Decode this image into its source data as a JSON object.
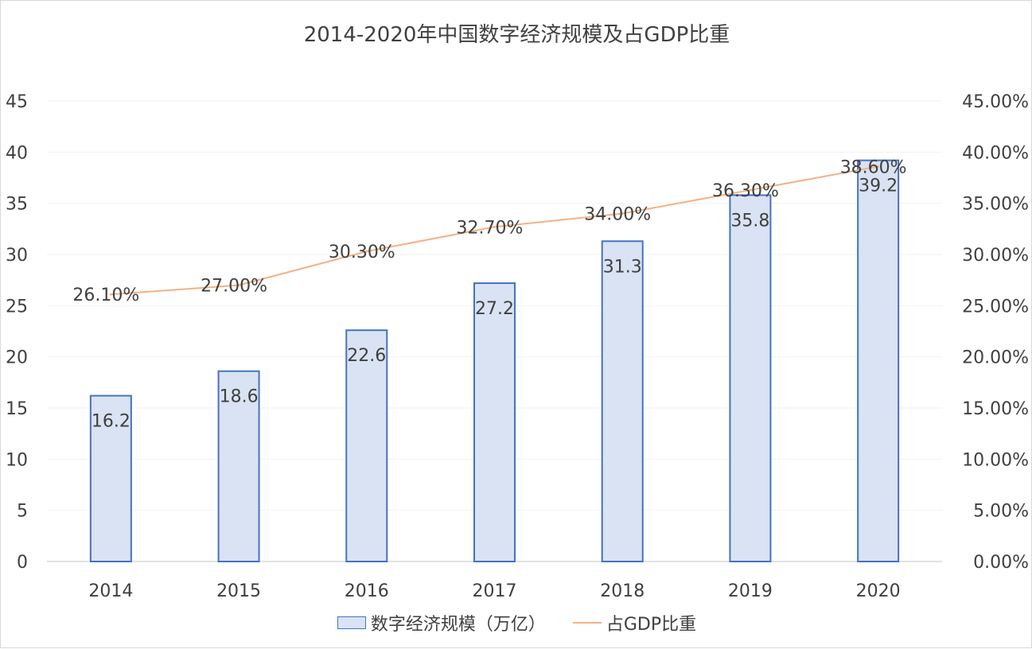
{
  "chart_data": {
    "type": "bar",
    "title": "2014-2020年中国数字经济规模及占GDP比重",
    "categories": [
      "2014",
      "2015",
      "2016",
      "2017",
      "2018",
      "2019",
      "2020"
    ],
    "series": [
      {
        "name": "数字经济规模（万亿）",
        "type": "bar",
        "axis": "left",
        "values": [
          16.2,
          18.6,
          22.6,
          27.2,
          31.3,
          35.8,
          39.2
        ],
        "labels": [
          "16.2",
          "18.6",
          "22.6",
          "27.2",
          "31.3",
          "35.8",
          "39.2"
        ],
        "color": "#dae3f3",
        "border_color": "#4472c4"
      },
      {
        "name": "占GDP比重",
        "type": "line",
        "axis": "right",
        "values": [
          0.261,
          0.27,
          0.303,
          0.327,
          0.34,
          0.363,
          0.386
        ],
        "labels": [
          "26.10%",
          "27.00%",
          "30.30%",
          "32.70%",
          "34.00%",
          "36.30%",
          "38.60%"
        ],
        "color": "#f4b183"
      }
    ],
    "y_left": {
      "ylim": [
        0,
        45
      ],
      "ticks": [
        "0",
        "5",
        "10",
        "15",
        "20",
        "25",
        "30",
        "35",
        "40",
        "45"
      ]
    },
    "y_right": {
      "ylim": [
        0,
        0.45
      ],
      "ticks": [
        "0.00%",
        "5.00%",
        "10.00%",
        "15.00%",
        "20.00%",
        "25.00%",
        "30.00%",
        "35.00%",
        "40.00%",
        "45.00%"
      ]
    },
    "grid": true,
    "legend": "bottom"
  }
}
